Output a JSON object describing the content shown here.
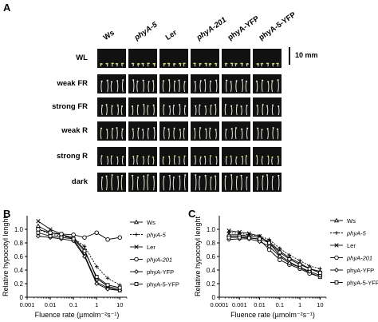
{
  "panel_a": {
    "letter": "A",
    "columns": [
      {
        "label": "Ws",
        "italic": false
      },
      {
        "label": "phyA-5",
        "italic": true
      },
      {
        "label": "Ler",
        "italic": false
      },
      {
        "label": "phyA-201",
        "italic": true
      },
      {
        "label": "phyA-YFP",
        "italic": false
      },
      {
        "label": "phyA-5-YFP",
        "italic": false
      }
    ],
    "rows": [
      {
        "label": "WL",
        "seedling_length": 0.18
      },
      {
        "label": "weak FR",
        "seedling_length": 0.75
      },
      {
        "label": "strong FR",
        "seedling_length": 0.65
      },
      {
        "label": "weak R",
        "seedling_length": 0.7
      },
      {
        "label": "strong R",
        "seedling_length": 0.55
      },
      {
        "label": "dark",
        "seedling_length": 0.95
      }
    ],
    "scale_bar_label": "10 mm"
  },
  "chart_data": [
    {
      "panel": "B",
      "type": "line",
      "xlabel": "Fluence rate (µmolm⁻²s⁻¹)",
      "ylabel": "Relative hypocotyl lenght",
      "xscale": "log",
      "xlim": [
        0.001,
        20
      ],
      "ylim": [
        0,
        1.2
      ],
      "xticks": [
        "0.001",
        "0.01",
        "0.1",
        "1",
        "10"
      ],
      "yticks": [
        "0",
        "0.2",
        "0.4",
        "0.6",
        "0.8",
        "1.0"
      ],
      "legend_position": "right",
      "x": [
        0.003,
        0.01,
        0.03,
        0.1,
        0.3,
        1,
        3,
        10
      ],
      "series": [
        {
          "name": "Ws",
          "italic": false,
          "marker": "triangle",
          "values": [
            1.05,
            0.95,
            0.92,
            0.88,
            0.7,
            0.28,
            0.16,
            0.12
          ]
        },
        {
          "name": "phyA-5",
          "italic": true,
          "marker": "plus",
          "dashed": true,
          "values": [
            1.0,
            0.93,
            0.9,
            0.87,
            0.75,
            0.45,
            0.28,
            0.18
          ]
        },
        {
          "name": "Ler",
          "italic": false,
          "marker": "x",
          "values": [
            1.12,
            1.0,
            0.93,
            0.85,
            0.62,
            0.22,
            0.14,
            0.1
          ]
        },
        {
          "name": "phyA-201",
          "italic": true,
          "marker": "circle",
          "values": [
            1.0,
            0.95,
            0.93,
            0.92,
            0.88,
            0.95,
            0.85,
            0.88
          ]
        },
        {
          "name": "phyA-YFP",
          "italic": false,
          "marker": "diamond",
          "values": [
            0.9,
            0.88,
            0.86,
            0.83,
            0.6,
            0.2,
            0.12,
            0.1
          ]
        },
        {
          "name": "phyA-5-YFP",
          "italic": false,
          "marker": "square",
          "values": [
            0.95,
            0.9,
            0.88,
            0.86,
            0.68,
            0.3,
            0.18,
            0.14
          ]
        }
      ]
    },
    {
      "panel": "C",
      "type": "line",
      "xlabel": "Fluence rate (µmolm⁻²s⁻¹)",
      "ylabel": "Relative hypocotyl lenght",
      "xscale": "log",
      "xlim": [
        0.0001,
        20
      ],
      "ylim": [
        0,
        1.2
      ],
      "xticks": [
        "0.0001",
        "0.001",
        "0.01",
        "0.1",
        "1",
        "10"
      ],
      "yticks": [
        "0",
        "0.2",
        "0.4",
        "0.6",
        "0.8",
        "1.0"
      ],
      "legend_position": "right",
      "x": [
        0.0003,
        0.001,
        0.003,
        0.01,
        0.03,
        0.1,
        0.3,
        1,
        3,
        10
      ],
      "series": [
        {
          "name": "Ws",
          "italic": false,
          "marker": "triangle",
          "values": [
            0.92,
            0.92,
            0.9,
            0.88,
            0.82,
            0.68,
            0.58,
            0.5,
            0.42,
            0.38
          ]
        },
        {
          "name": "phyA-5",
          "italic": true,
          "marker": "plus",
          "dashed": true,
          "values": [
            0.95,
            0.94,
            0.92,
            0.9,
            0.85,
            0.72,
            0.62,
            0.54,
            0.46,
            0.42
          ]
        },
        {
          "name": "Ler",
          "italic": false,
          "marker": "x",
          "values": [
            0.98,
            0.96,
            0.94,
            0.9,
            0.8,
            0.62,
            0.52,
            0.44,
            0.36,
            0.3
          ]
        },
        {
          "name": "phyA-201",
          "italic": true,
          "marker": "circle",
          "values": [
            0.9,
            0.9,
            0.88,
            0.85,
            0.7,
            0.55,
            0.48,
            0.42,
            0.35,
            0.3
          ]
        },
        {
          "name": "phyA-YFP",
          "italic": false,
          "marker": "diamond",
          "values": [
            0.85,
            0.86,
            0.86,
            0.82,
            0.75,
            0.6,
            0.5,
            0.44,
            0.38,
            0.32
          ]
        },
        {
          "name": "phyA-5-YFP",
          "italic": false,
          "marker": "square",
          "values": [
            0.88,
            0.88,
            0.87,
            0.86,
            0.8,
            0.66,
            0.56,
            0.48,
            0.42,
            0.36
          ]
        }
      ]
    }
  ]
}
